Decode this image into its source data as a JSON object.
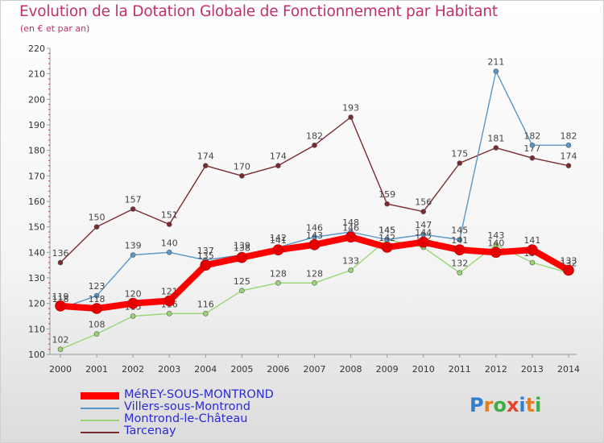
{
  "title": "Evolution de la Dotation Globale de Fonctionnement par Habitant",
  "subtitle": "(en € et par an)",
  "logo": {
    "text": "Proxiti"
  },
  "chart_data": {
    "type": "line",
    "title": "Evolution de la Dotation Globale de Fonctionnement par Habitant",
    "ylabel": "(en € et par an)",
    "xlabel": "",
    "ylim": [
      100,
      220
    ],
    "yticks": [
      100,
      110,
      120,
      130,
      140,
      150,
      160,
      170,
      180,
      190,
      200,
      210,
      220
    ],
    "grid": false,
    "legend_position": "bottom-left",
    "categories": [
      "2000",
      "2001",
      "2002",
      "2003",
      "2004",
      "2005",
      "2006",
      "2007",
      "2008",
      "2009",
      "2010",
      "2011",
      "2012",
      "2013",
      "2014"
    ],
    "series": [
      {
        "name": "Tarcenay",
        "color": "#7a2a2e",
        "values": [
          136,
          150,
          157,
          151,
          174,
          170,
          174,
          182,
          193,
          159,
          156,
          175,
          181,
          177,
          174
        ]
      },
      {
        "name": "Montrond-le-Château",
        "color": "#99d673",
        "values": [
          102,
          108,
          115,
          116,
          116,
          125,
          128,
          128,
          133,
          145,
          142,
          132,
          143,
          136,
          132
        ]
      },
      {
        "name": "Villers-sous-Montrond",
        "color": "#5a96c8",
        "values": [
          118,
          123,
          139,
          140,
          137,
          139,
          142,
          146,
          148,
          145,
          147,
          145,
          211,
          182,
          182
        ]
      },
      {
        "name": "MéREY-SOUS-MONTROND",
        "color": "#ff0000",
        "values": [
          119,
          118,
          120,
          121,
          135,
          138,
          141,
          143,
          146,
          142,
          144,
          141,
          140,
          141,
          133
        ]
      }
    ]
  }
}
